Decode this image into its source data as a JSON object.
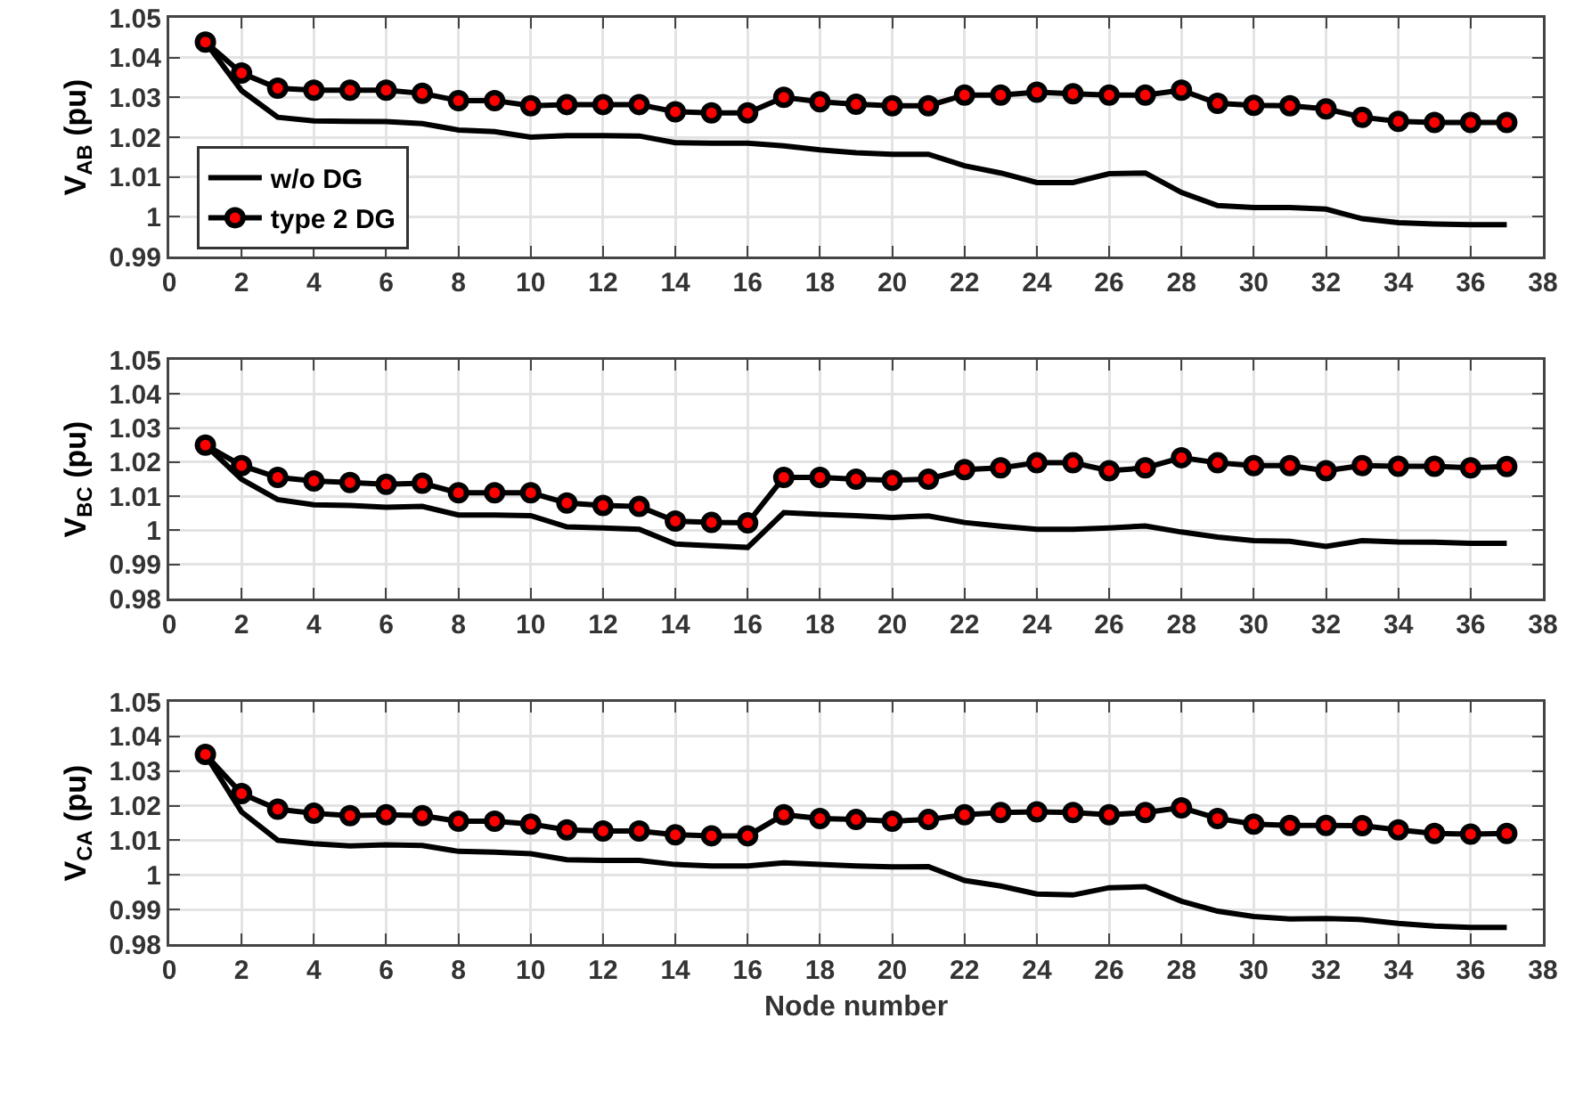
{
  "chart_data": [
    {
      "type": "line",
      "ylabel": "V$_{AB}$ (pu)",
      "x": [
        1,
        2,
        3,
        4,
        5,
        6,
        7,
        8,
        9,
        10,
        11,
        12,
        13,
        14,
        15,
        16,
        17,
        18,
        19,
        20,
        21,
        22,
        23,
        24,
        25,
        26,
        27,
        28,
        29,
        30,
        31,
        32,
        33,
        34,
        35,
        36,
        37
      ],
      "xlim": [
        0,
        38
      ],
      "xticks": [
        0,
        2,
        4,
        6,
        8,
        10,
        12,
        14,
        16,
        18,
        20,
        22,
        24,
        26,
        28,
        30,
        32,
        34,
        36,
        38
      ],
      "ylim": [
        0.99,
        1.05
      ],
      "yticks": [
        0.99,
        1,
        1.01,
        1.02,
        1.03,
        1.04,
        1.05
      ],
      "grid": true,
      "legend": "bottom left",
      "line_style": "solid",
      "series": [
        {
          "name": "w/o DG",
          "color": "#000000",
          "marker": "none",
          "values": [
            1.0439,
            1.0317,
            1.025,
            1.0241,
            1.024,
            1.0239,
            1.0234,
            1.0218,
            1.0214,
            1.02,
            1.0204,
            1.0204,
            1.0203,
            1.0186,
            1.0185,
            1.0185,
            1.0178,
            1.0168,
            1.0161,
            1.0157,
            1.0157,
            1.0128,
            1.011,
            1.0086,
            1.0086,
            1.0108,
            1.011,
            1.0061,
            1.0028,
            1.0023,
            1.0023,
            1.0019,
            0.9995,
            0.9985,
            0.9982,
            0.998,
            0.998
          ]
        },
        {
          "name": "type 2 DG",
          "color": "#000000",
          "marker": "circle",
          "values": [
            1.0439,
            1.0361,
            1.0323,
            1.0318,
            1.0318,
            1.0318,
            1.031,
            1.0292,
            1.0292,
            1.0279,
            1.0282,
            1.0282,
            1.0282,
            1.0264,
            1.0261,
            1.0261,
            1.03,
            1.0289,
            1.0283,
            1.0279,
            1.0279,
            1.0306,
            1.0306,
            1.0313,
            1.0309,
            1.0306,
            1.0306,
            1.0318,
            1.0285,
            1.028,
            1.0279,
            1.0271,
            1.025,
            1.024,
            1.0237,
            1.0237,
            1.0237
          ]
        }
      ]
    },
    {
      "type": "line",
      "ylabel": "V$_{BC}$ (pu)",
      "x": [
        1,
        2,
        3,
        4,
        5,
        6,
        7,
        8,
        9,
        10,
        11,
        12,
        13,
        14,
        15,
        16,
        17,
        18,
        19,
        20,
        21,
        22,
        23,
        24,
        25,
        26,
        27,
        28,
        29,
        30,
        31,
        32,
        33,
        34,
        35,
        36,
        37
      ],
      "xlim": [
        0,
        38
      ],
      "xticks": [
        0,
        2,
        4,
        6,
        8,
        10,
        12,
        14,
        16,
        18,
        20,
        22,
        24,
        26,
        28,
        30,
        32,
        34,
        36,
        38
      ],
      "ylim": [
        0.98,
        1.05
      ],
      "yticks": [
        0.98,
        0.99,
        1,
        1.01,
        1.02,
        1.03,
        1.04,
        1.05
      ],
      "grid": true,
      "line_style": "solid",
      "series": [
        {
          "color": "#000000",
          "marker": "none",
          "values": [
            1.025,
            1.015,
            1.009,
            1.0075,
            1.0073,
            1.0068,
            1.007,
            1.0045,
            1.0045,
            1.0043,
            1.001,
            1.0007,
            1.0003,
            0.996,
            0.9955,
            0.995,
            1.0052,
            1.0047,
            1.0043,
            1.0038,
            1.0042,
            1.0023,
            1.0012,
            1.0003,
            1.0003,
            1.0007,
            1.0013,
            0.9995,
            0.998,
            0.997,
            0.9968,
            0.9953,
            0.997,
            0.9966,
            0.9965,
            0.9962,
            0.9962
          ]
        },
        {
          "color": "#000000",
          "marker": "circle",
          "values": [
            1.025,
            1.019,
            1.0155,
            1.0145,
            1.014,
            1.0135,
            1.0138,
            1.011,
            1.011,
            1.011,
            1.008,
            1.0073,
            1.007,
            1.0027,
            1.0023,
            1.0022,
            1.0155,
            1.0155,
            1.015,
            1.0147,
            1.015,
            1.0178,
            1.0183,
            1.0198,
            1.0198,
            1.0175,
            1.0183,
            1.0213,
            1.0198,
            1.019,
            1.019,
            1.0175,
            1.019,
            1.0188,
            1.0188,
            1.0183,
            1.0187
          ]
        }
      ]
    },
    {
      "type": "line",
      "ylabel": "V$_{CA}$ (pu)",
      "xlabel": "Node number",
      "x": [
        1,
        2,
        3,
        4,
        5,
        6,
        7,
        8,
        9,
        10,
        11,
        12,
        13,
        14,
        15,
        16,
        17,
        18,
        19,
        20,
        21,
        22,
        23,
        24,
        25,
        26,
        27,
        28,
        29,
        30,
        31,
        32,
        33,
        34,
        35,
        36,
        37
      ],
      "xlim": [
        0,
        38
      ],
      "xticks": [
        0,
        2,
        4,
        6,
        8,
        10,
        12,
        14,
        16,
        18,
        20,
        22,
        24,
        26,
        28,
        30,
        32,
        34,
        36,
        38
      ],
      "ylim": [
        0.98,
        1.05
      ],
      "yticks": [
        0.98,
        0.99,
        1,
        1.01,
        1.02,
        1.03,
        1.04,
        1.05
      ],
      "grid": true,
      "line_style": "solid",
      "series": [
        {
          "color": "#000000",
          "marker": "none",
          "values": [
            1.0348,
            1.0182,
            1.01,
            1.009,
            1.0084,
            1.0087,
            1.0085,
            1.0068,
            1.0066,
            1.0061,
            1.0044,
            1.0042,
            1.0042,
            1.003,
            1.0026,
            1.0026,
            1.0035,
            1.003,
            1.0026,
            1.0023,
            1.0024,
            0.9984,
            0.9968,
            0.9945,
            0.9942,
            0.9963,
            0.9966,
            0.9924,
            0.9895,
            0.988,
            0.9873,
            0.9874,
            0.9871,
            0.986,
            0.9852,
            0.9848,
            0.9848
          ]
        },
        {
          "color": "#000000",
          "marker": "circle",
          "values": [
            1.0348,
            1.0235,
            1.019,
            1.0178,
            1.0171,
            1.0174,
            1.0171,
            1.0155,
            1.0155,
            1.0147,
            1.013,
            1.0127,
            1.0127,
            1.0116,
            1.0113,
            1.0113,
            1.0174,
            1.0163,
            1.016,
            1.0155,
            1.016,
            1.0174,
            1.018,
            1.0182,
            1.018,
            1.0174,
            1.018,
            1.0194,
            1.0163,
            1.0147,
            1.0143,
            1.0143,
            1.0142,
            1.013,
            1.012,
            1.0118,
            1.012
          ]
        }
      ]
    }
  ]
}
